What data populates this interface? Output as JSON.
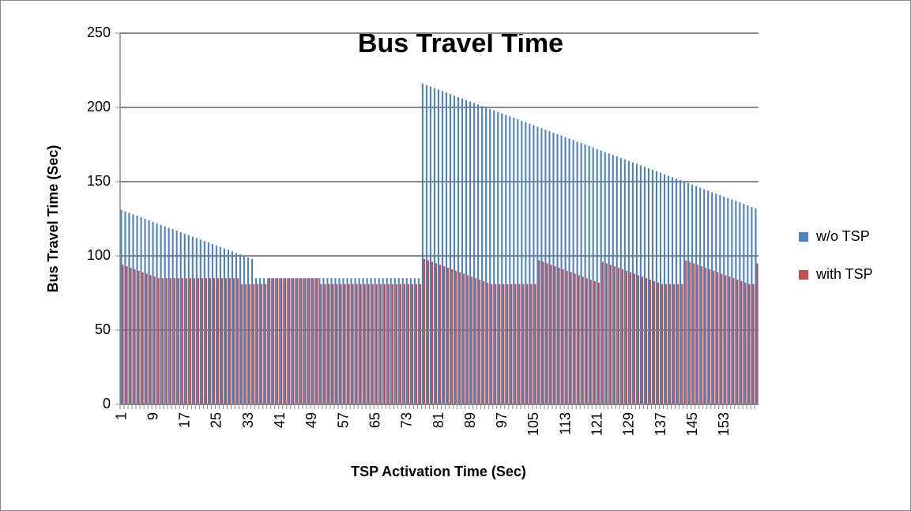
{
  "chart_data": {
    "type": "bar",
    "title": "Bus Travel Time",
    "x_label": "TSP Activation Time (Sec)",
    "y_label": "Bus Travel Time (Sec)",
    "categories": [
      1,
      null,
      null,
      null,
      null,
      null,
      null,
      null,
      9,
      null,
      null,
      null,
      null,
      null,
      null,
      null,
      17,
      null,
      null,
      null,
      null,
      null,
      null,
      null,
      25,
      null,
      null,
      null,
      null,
      null,
      null,
      null,
      33,
      null,
      null,
      null,
      null,
      null,
      null,
      null,
      41,
      null,
      null,
      null,
      null,
      null,
      null,
      null,
      49,
      null,
      null,
      null,
      null,
      null,
      null,
      null,
      57,
      null,
      null,
      null,
      null,
      null,
      null,
      null,
      65,
      null,
      null,
      null,
      null,
      null,
      null,
      null,
      73,
      null,
      null,
      null,
      null,
      null,
      null,
      null,
      81,
      null,
      null,
      null,
      null,
      null,
      null,
      null,
      89,
      null,
      null,
      null,
      null,
      null,
      null,
      null,
      97,
      null,
      null,
      null,
      null,
      null,
      null,
      null,
      105,
      null,
      null,
      null,
      null,
      null,
      null,
      null,
      113,
      null,
      null,
      null,
      null,
      null,
      null,
      null,
      121,
      null,
      null,
      null,
      null,
      null,
      null,
      null,
      129,
      null,
      null,
      null,
      null,
      null,
      null,
      null,
      137,
      null,
      null,
      null,
      null,
      null,
      null,
      null,
      145,
      null,
      null,
      null,
      null,
      null,
      null,
      null,
      153,
      null,
      null,
      null,
      null,
      null,
      null,
      null,
      null
    ],
    "series": [
      {
        "name": "w/o TSP",
        "color": "#4f81bd",
        "values": [
          131,
          130,
          129,
          128,
          127,
          126,
          125,
          124,
          123,
          122,
          121,
          120,
          119,
          118,
          117,
          116,
          115,
          114,
          113,
          112,
          111,
          110,
          109,
          108,
          107,
          106,
          105,
          104,
          103,
          102,
          101,
          100,
          99,
          98,
          85,
          85,
          85,
          85,
          85,
          85,
          85,
          85,
          85,
          85,
          85,
          85,
          85,
          85,
          85,
          85,
          85,
          85,
          85,
          85,
          85,
          85,
          85,
          85,
          85,
          85,
          85,
          85,
          85,
          85,
          85,
          85,
          85,
          85,
          85,
          85,
          85,
          85,
          85,
          85,
          85,
          85,
          216,
          215,
          214,
          213,
          212,
          211,
          210,
          209,
          208,
          207,
          206,
          205,
          204,
          203,
          202,
          201,
          200,
          199,
          198,
          197,
          196,
          195,
          194,
          193,
          192,
          191,
          190,
          189,
          188,
          187,
          186,
          185,
          184,
          183,
          182,
          181,
          180,
          179,
          178,
          177,
          176,
          175,
          174,
          173,
          172,
          171,
          170,
          169,
          168,
          167,
          166,
          165,
          164,
          163,
          162,
          161,
          160,
          159,
          158,
          157,
          156,
          155,
          154,
          153,
          152,
          151,
          150,
          149,
          148,
          147,
          146,
          145,
          144,
          143,
          142,
          141,
          140,
          139,
          138,
          137,
          136,
          135,
          134,
          133,
          132
        ]
      },
      {
        "name": "with TSP",
        "color": "#c0504d",
        "values": [
          94,
          93,
          92,
          91,
          90,
          89,
          88,
          87,
          86,
          85,
          85,
          85,
          85,
          85,
          85,
          85,
          85,
          85,
          85,
          85,
          85,
          85,
          85,
          85,
          85,
          85,
          85,
          85,
          85,
          85,
          81,
          81,
          81,
          81,
          81,
          81,
          81,
          85,
          85,
          85,
          85,
          85,
          85,
          85,
          85,
          85,
          85,
          85,
          85,
          85,
          81,
          81,
          81,
          81,
          81,
          81,
          81,
          81,
          81,
          81,
          81,
          81,
          81,
          81,
          81,
          81,
          81,
          81,
          81,
          81,
          81,
          81,
          81,
          81,
          81,
          81,
          98,
          97,
          96,
          95,
          94,
          93,
          92,
          91,
          90,
          89,
          88,
          87,
          86,
          85,
          84,
          83,
          82,
          81,
          81,
          81,
          81,
          81,
          81,
          81,
          81,
          81,
          81,
          81,
          81,
          97,
          96,
          95,
          94,
          93,
          92,
          91,
          90,
          89,
          88,
          87,
          86,
          85,
          84,
          83,
          82,
          96,
          95,
          94,
          93,
          92,
          91,
          90,
          89,
          88,
          87,
          86,
          85,
          84,
          83,
          82,
          81,
          81,
          81,
          81,
          81,
          81,
          97,
          96,
          95,
          94,
          93,
          92,
          91,
          90,
          89,
          88,
          87,
          86,
          85,
          84,
          83,
          82,
          81,
          81,
          95
        ]
      }
    ],
    "ylim": [
      0,
      250
    ],
    "yticks": [
      0,
      50,
      100,
      150,
      200,
      250
    ],
    "grid": true
  }
}
